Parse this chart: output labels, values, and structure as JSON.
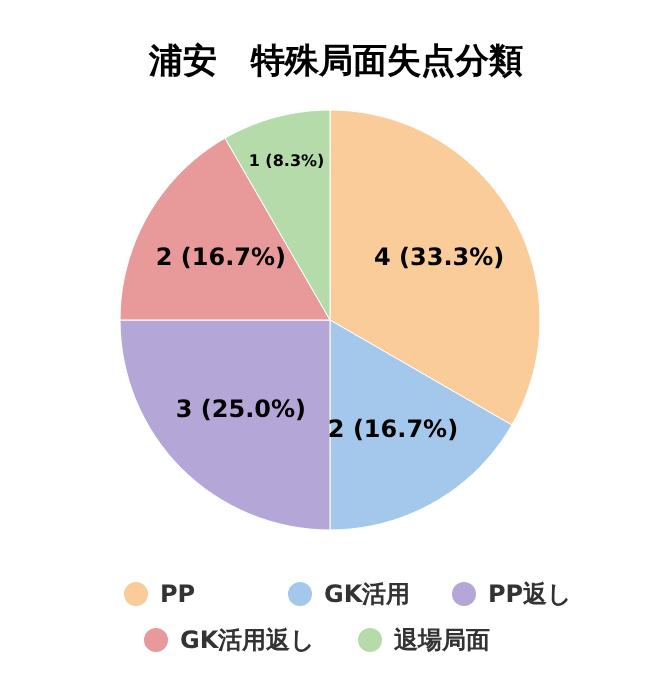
{
  "chart_data": {
    "type": "pie",
    "title": "浦安　特殊局面失点分類",
    "categories": [
      "PP",
      "GK活用",
      "PP返し",
      "GK活用返し",
      "退場局面"
    ],
    "values": [
      4,
      2,
      3,
      2,
      1
    ],
    "colors": [
      "#f9cc9a",
      "#a3c8ec",
      "#b5a6d8",
      "#e8999a",
      "#b5dbaa"
    ],
    "value_labels": [
      "4 (33.3%)",
      "2 (16.7%)",
      "3 (25.0%)",
      "2 (16.7%)",
      "1 (8.3%)"
    ],
    "legend": "bottom"
  }
}
